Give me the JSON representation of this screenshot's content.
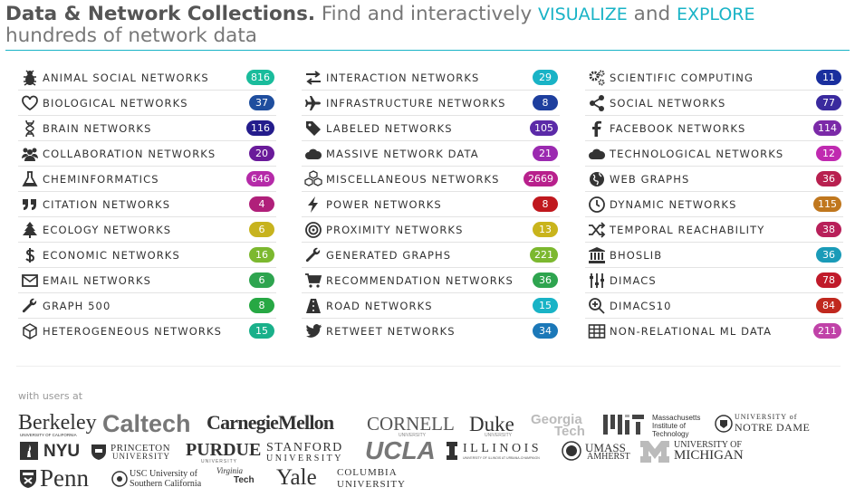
{
  "header": {
    "title_bold": "Data & Network Collections.",
    "text1": " Find and interactively ",
    "visualize": "VISUALIZE",
    "text2": " and ",
    "explore": "EXPLORE",
    "text3": " hundreds of network data"
  },
  "columns": [
    [
      {
        "label": "ANIMAL SOCIAL NETWORKS",
        "count": "816",
        "color": "#1abc9c",
        "icon": "bug-icon"
      },
      {
        "label": "BIOLOGICAL NETWORKS",
        "count": "37",
        "color": "#1f4e9e",
        "icon": "heart-icon"
      },
      {
        "label": "BRAIN NETWORKS",
        "count": "116",
        "color": "#241c8c",
        "icon": "dna-icon"
      },
      {
        "label": "COLLABORATION NETWORKS",
        "count": "20",
        "color": "#6a1b9a",
        "icon": "users-icon"
      },
      {
        "label": "CHEMINFORMATICS",
        "count": "646",
        "color": "#b52aa8",
        "icon": "flask-icon"
      },
      {
        "label": "CITATION NETWORKS",
        "count": "4",
        "color": "#b0207a",
        "icon": "quote-icon"
      },
      {
        "label": "ECOLOGY NETWORKS",
        "count": "6",
        "color": "#c7b31e",
        "icon": "tree-icon"
      },
      {
        "label": "ECONOMIC NETWORKS",
        "count": "16",
        "color": "#7cb82f",
        "icon": "dollar-icon"
      },
      {
        "label": "EMAIL NETWORKS",
        "count": "6",
        "color": "#2ea44f",
        "icon": "envelope-icon"
      },
      {
        "label": "GRAPH 500",
        "count": "8",
        "color": "#27a844",
        "icon": "wrench-icon"
      },
      {
        "label": "HETEROGENEOUS NETWORKS",
        "count": "15",
        "color": "#1ab08a",
        "icon": "cube-icon"
      }
    ],
    [
      {
        "label": "INTERACTION NETWORKS",
        "count": "29",
        "color": "#19b3c6",
        "icon": "exchange-icon"
      },
      {
        "label": "INFRASTRUCTURE NETWORKS",
        "count": "8",
        "color": "#1e3f9e",
        "icon": "plane-icon"
      },
      {
        "label": "LABELED NETWORKS",
        "count": "105",
        "color": "#5b2aa8",
        "icon": "tags-icon"
      },
      {
        "label": "MASSIVE NETWORK DATA",
        "count": "21",
        "color": "#9b2ab0",
        "icon": "cloud-icon"
      },
      {
        "label": "MISCELLANEOUS NETWORKS",
        "count": "2669",
        "color": "#b8208c",
        "icon": "cubes-icon"
      },
      {
        "label": "POWER NETWORKS",
        "count": "8",
        "color": "#c0181e",
        "icon": "bolt-icon"
      },
      {
        "label": "PROXIMITY NETWORKS",
        "count": "13",
        "color": "#c9b41c",
        "icon": "bullseye-icon"
      },
      {
        "label": "GENERATED GRAPHS",
        "count": "221",
        "color": "#7cb82f",
        "icon": "wrench-icon"
      },
      {
        "label": "RECOMMENDATION NETWORKS",
        "count": "36",
        "color": "#2ea44f",
        "icon": "cart-icon"
      },
      {
        "label": "ROAD NETWORKS",
        "count": "15",
        "color": "#19b3c6",
        "icon": "road-icon"
      },
      {
        "label": "RETWEET NETWORKS",
        "count": "34",
        "color": "#1b78b8",
        "icon": "twitter-icon"
      }
    ],
    [
      {
        "label": "SCIENTIFIC COMPUTING",
        "count": "11",
        "color": "#1a2f9e",
        "icon": "cogs-icon"
      },
      {
        "label": "SOCIAL NETWORKS",
        "count": "77",
        "color": "#3a2a9e",
        "icon": "share-icon"
      },
      {
        "label": "FACEBOOK NETWORKS",
        "count": "114",
        "color": "#7b2aa8",
        "icon": "facebook-icon"
      },
      {
        "label": "TECHNOLOGICAL NETWORKS",
        "count": "12",
        "color": "#c02ab0",
        "icon": "cloud-icon"
      },
      {
        "label": "WEB GRAPHS",
        "count": "36",
        "color": "#b8204f",
        "icon": "globe-icon"
      },
      {
        "label": "DYNAMIC NETWORKS",
        "count": "115",
        "color": "#c0771e",
        "icon": "clock-icon"
      },
      {
        "label": "TEMPORAL REACHABILITY",
        "count": "38",
        "color": "#b8205a",
        "icon": "random-icon"
      },
      {
        "label": "BHOSLIB",
        "count": "36",
        "color": "#1a9bb8",
        "icon": "institution-icon"
      },
      {
        "label": "DIMACS",
        "count": "78",
        "color": "#c01a2a",
        "icon": "sliders-icon"
      },
      {
        "label": "DIMACS10",
        "count": "84",
        "color": "#c0281e",
        "icon": "search-plus-icon"
      },
      {
        "label": "NON-RELATIONAL ML DATA",
        "count": "211",
        "color": "#c042a8",
        "icon": "table-icon"
      }
    ]
  ],
  "users": {
    "label": "with users at",
    "logos": {
      "berkeley": "Berkeley",
      "berkeley_sub": "UNIVERSITY OF CALIFORNIA",
      "caltech": "Caltech",
      "cmu": "CarnegieMellon",
      "cornell": "CORNELL",
      "cornell_sub": "UNIVERSITY",
      "duke": "Duke",
      "duke_sub": "UNIVERSITY",
      "gatech_1": "Georgia",
      "gatech_2": "Tech",
      "mit_1": "Massachusetts",
      "mit_2": "Institute of",
      "mit_3": "Technology",
      "notredame_1": "UNIVERSITY of",
      "notredame_2": "NOTRE DAME",
      "nyu": "NYU",
      "princeton_1": "PRINCETON",
      "princeton_2": "UNIVERSITY",
      "purdue": "PURDUE",
      "purdue_sub": "UNIVERSITY",
      "stanford_1": "STANFORD",
      "stanford_2": "UNIVERSITY",
      "ucla": "UCLA",
      "illinois": "ILLINOIS",
      "illinois_sub": "UNIVERSITY OF ILLINOIS AT URBANA-CHAMPAIGN",
      "umass_1": "UMASS",
      "umass_2": "AMHERST",
      "umich_1": "UNIVERSITY OF",
      "umich_2": "MICHIGAN",
      "penn": "Penn",
      "usc_1": "USC University of",
      "usc_2": "Southern California",
      "vt_1": "Virginia",
      "vt_2": "Tech",
      "yale": "Yale",
      "columbia_1": "COLUMBIA",
      "columbia_2": "UNIVERSITY"
    }
  }
}
